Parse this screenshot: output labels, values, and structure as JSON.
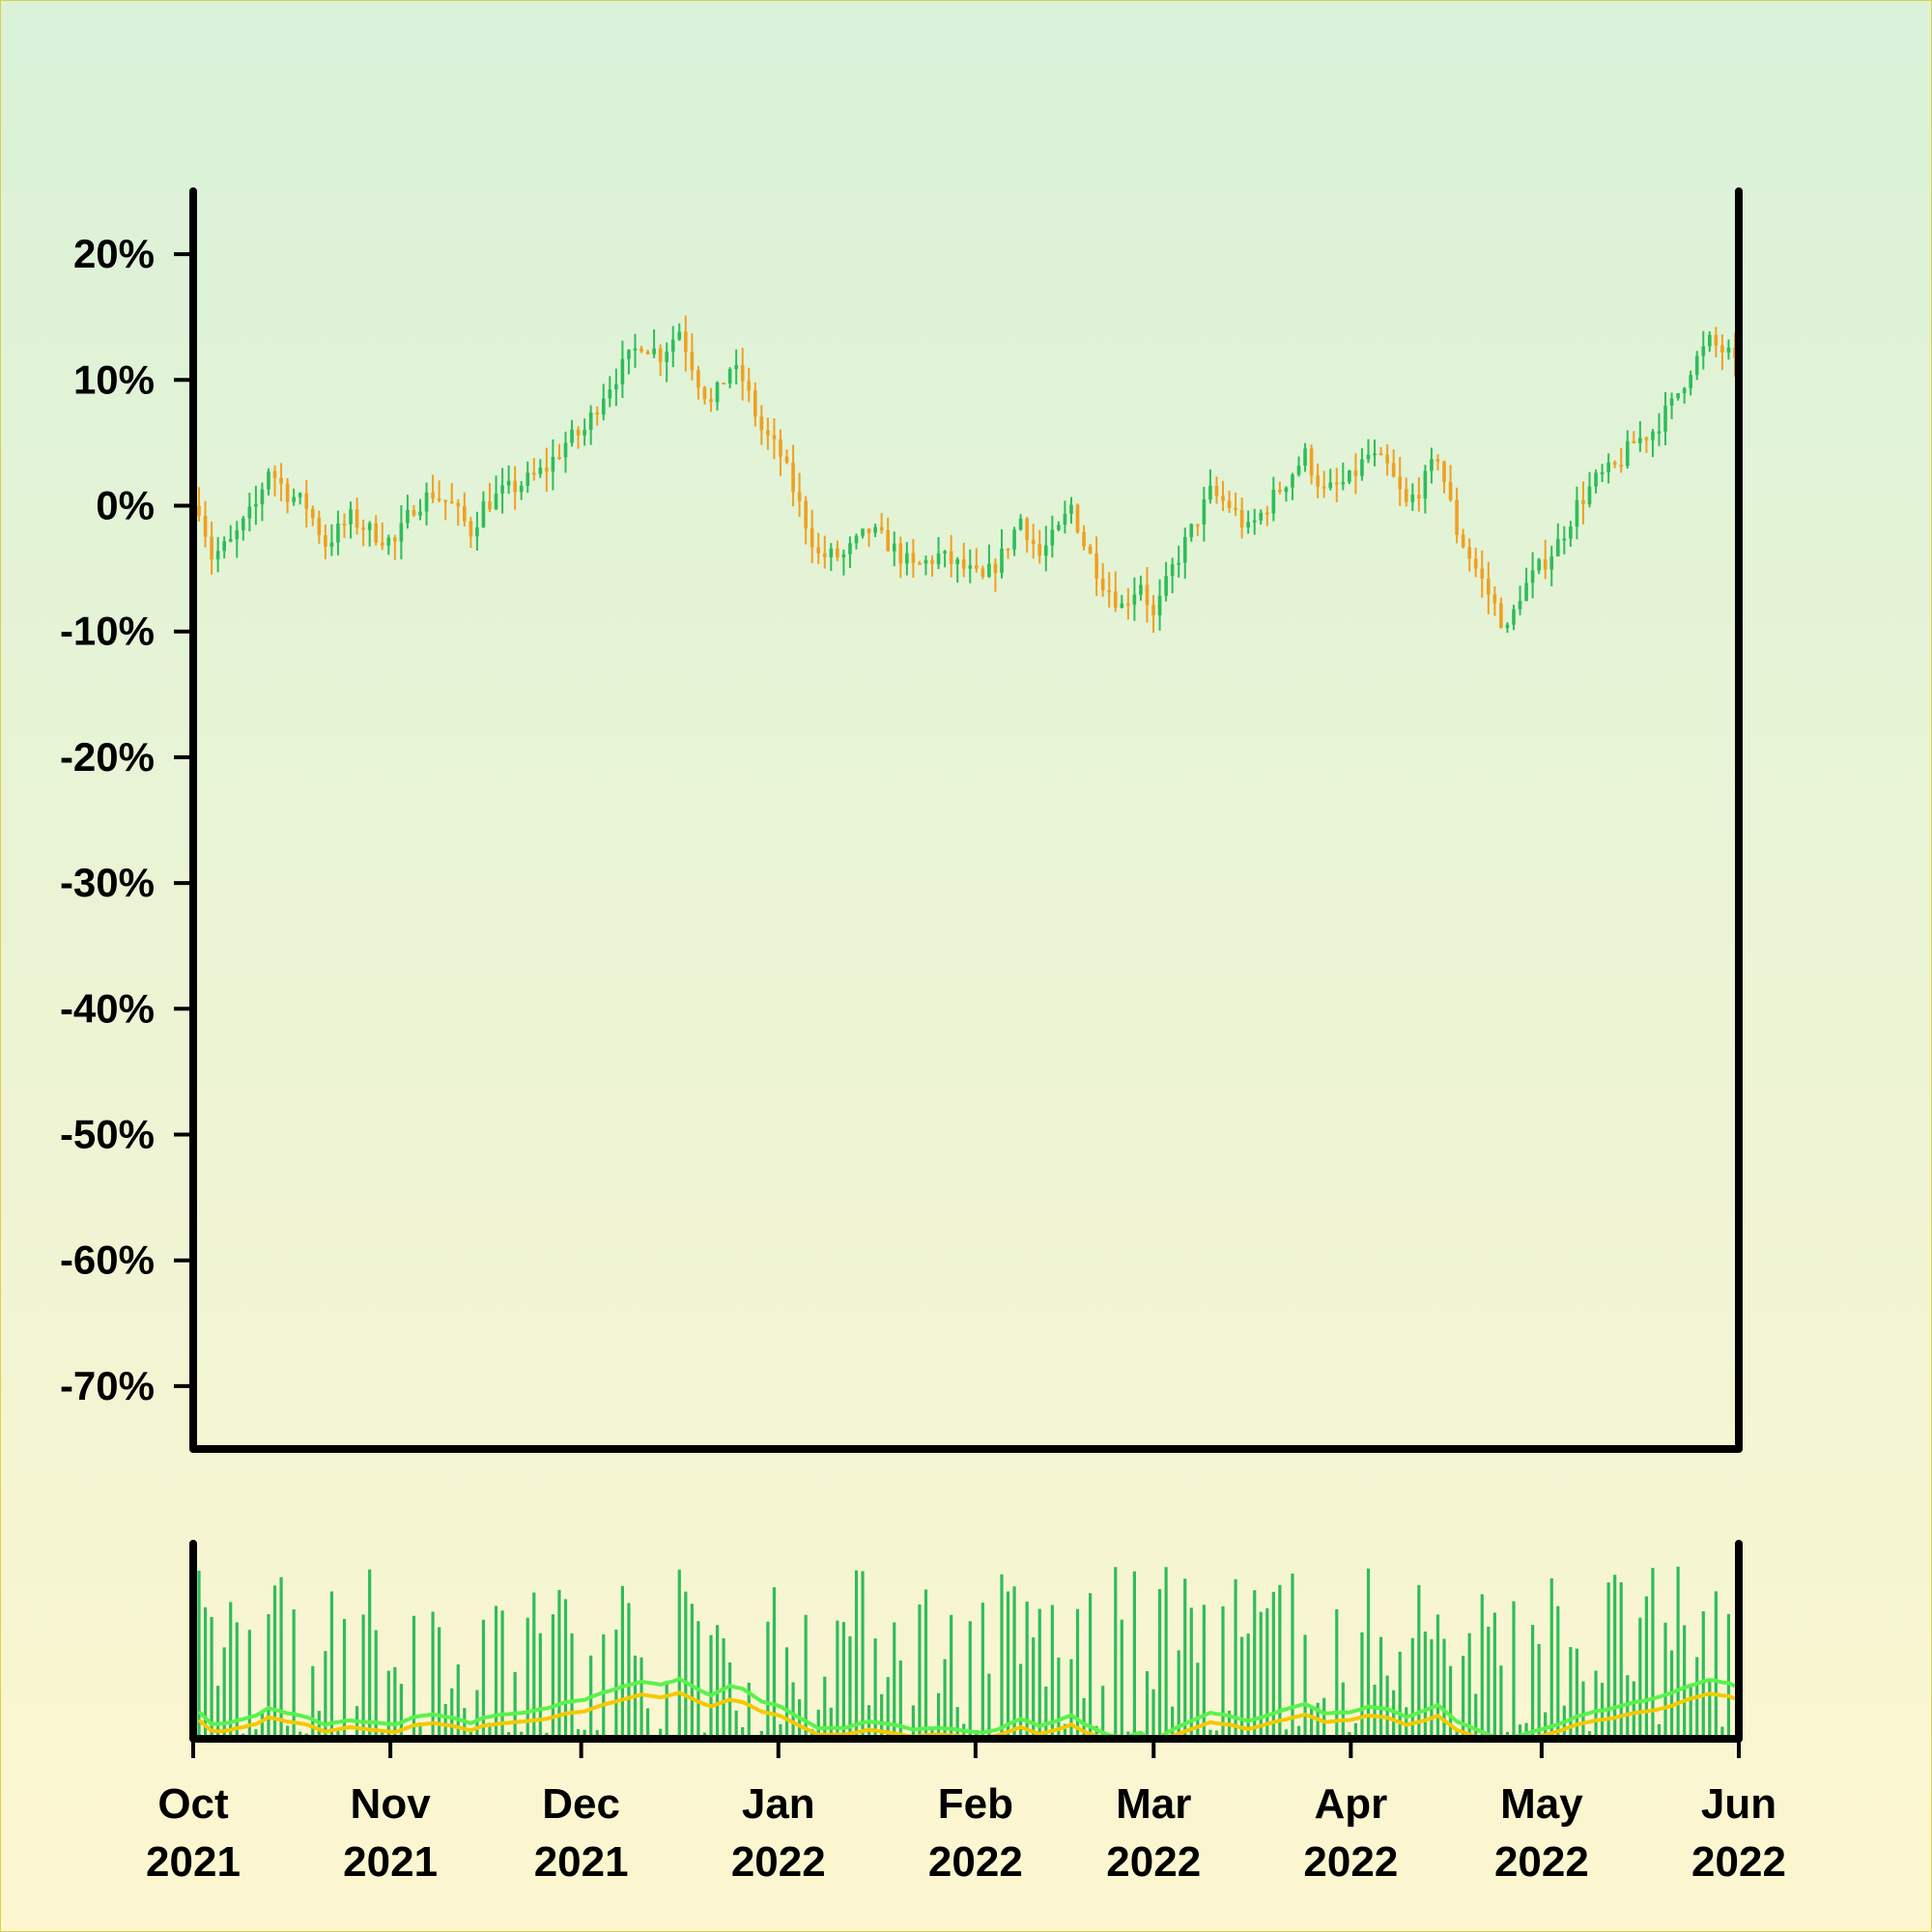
{
  "chart_data": {
    "type": "candlestick",
    "y_axis": {
      "tick_labels": [
        "20%",
        "10%",
        "0%",
        "-10%",
        "-20%",
        "-30%",
        "-40%",
        "-50%",
        "-60%",
        "-70%"
      ],
      "tick_values": [
        20,
        10,
        0,
        -10,
        -20,
        -30,
        -40,
        -50,
        -60,
        -70
      ],
      "ylim": [
        -75,
        25
      ]
    },
    "x_axis": {
      "tick_labels": [
        [
          "Oct",
          "2021"
        ],
        [
          "Nov",
          "2021"
        ],
        [
          "Dec",
          "2021"
        ],
        [
          "Jan",
          "2022"
        ],
        [
          "Feb",
          "2022"
        ],
        [
          "Mar",
          "2022"
        ],
        [
          "Apr",
          "2022"
        ],
        [
          "May",
          "2022"
        ],
        [
          "Jun",
          "2022"
        ]
      ],
      "tick_dates": [
        "2021-10-01",
        "2021-11-01",
        "2021-12-01",
        "2022-01-01",
        "2022-02-01",
        "2022-03-01",
        "2022-04-01",
        "2022-05-01",
        "2022-06-01"
      ],
      "xlim": [
        "2021-10-01",
        "2022-06-01"
      ]
    },
    "price_path": [
      [
        "2021-10-01",
        0
      ],
      [
        "2021-10-03",
        -4
      ],
      [
        "2021-10-06",
        -3
      ],
      [
        "2021-10-10",
        0
      ],
      [
        "2021-10-12",
        3
      ],
      [
        "2021-10-15",
        1
      ],
      [
        "2021-10-18",
        0
      ],
      [
        "2021-10-21",
        -3
      ],
      [
        "2021-10-25",
        -1
      ],
      [
        "2021-10-28",
        -2
      ],
      [
        "2021-11-01",
        -3
      ],
      [
        "2021-11-04",
        0
      ],
      [
        "2021-11-07",
        1
      ],
      [
        "2021-11-10",
        0
      ],
      [
        "2021-11-13",
        -2
      ],
      [
        "2021-11-15",
        0
      ],
      [
        "2021-11-18",
        1
      ],
      [
        "2021-11-22",
        2
      ],
      [
        "2021-11-25",
        3
      ],
      [
        "2021-11-28",
        5
      ],
      [
        "2021-12-01",
        6
      ],
      [
        "2021-12-04",
        9
      ],
      [
        "2021-12-07",
        11
      ],
      [
        "2021-12-10",
        13
      ],
      [
        "2021-12-13",
        12
      ],
      [
        "2021-12-16",
        14
      ],
      [
        "2021-12-19",
        10
      ],
      [
        "2021-12-21",
        8
      ],
      [
        "2021-12-24",
        11
      ],
      [
        "2021-12-26",
        10
      ],
      [
        "2021-12-29",
        6
      ],
      [
        "2022-01-01",
        4
      ],
      [
        "2022-01-04",
        0
      ],
      [
        "2022-01-07",
        -4
      ],
      [
        "2022-01-11",
        -4
      ],
      [
        "2022-01-15",
        -2
      ],
      [
        "2022-01-18",
        -3
      ],
      [
        "2022-01-22",
        -5
      ],
      [
        "2022-01-26",
        -4
      ],
      [
        "2022-01-30",
        -5
      ],
      [
        "2022-02-02",
        -6
      ],
      [
        "2022-02-05",
        -4
      ],
      [
        "2022-02-08",
        -1
      ],
      [
        "2022-02-11",
        -4
      ],
      [
        "2022-02-14",
        -2
      ],
      [
        "2022-02-16",
        0
      ],
      [
        "2022-02-18",
        -3
      ],
      [
        "2022-02-21",
        -6
      ],
      [
        "2022-02-24",
        -8
      ],
      [
        "2022-02-27",
        -6
      ],
      [
        "2022-03-01",
        -9
      ],
      [
        "2022-03-04",
        -5
      ],
      [
        "2022-03-07",
        -2
      ],
      [
        "2022-03-10",
        1
      ],
      [
        "2022-03-13",
        0
      ],
      [
        "2022-03-16",
        -2
      ],
      [
        "2022-03-19",
        0
      ],
      [
        "2022-03-22",
        2
      ],
      [
        "2022-03-25",
        4
      ],
      [
        "2022-03-28",
        1
      ],
      [
        "2022-04-01",
        2
      ],
      [
        "2022-04-04",
        4
      ],
      [
        "2022-04-07",
        3
      ],
      [
        "2022-04-10",
        0
      ],
      [
        "2022-04-13",
        2
      ],
      [
        "2022-04-15",
        4
      ],
      [
        "2022-04-18",
        -2
      ],
      [
        "2022-04-22",
        -6
      ],
      [
        "2022-04-26",
        -10
      ],
      [
        "2022-04-28",
        -7
      ],
      [
        "2022-05-01",
        -5
      ],
      [
        "2022-05-04",
        -3
      ],
      [
        "2022-05-07",
        0
      ],
      [
        "2022-05-10",
        2
      ],
      [
        "2022-05-13",
        3
      ],
      [
        "2022-05-16",
        5
      ],
      [
        "2022-05-19",
        6
      ],
      [
        "2022-05-22",
        8
      ],
      [
        "2022-05-25",
        11
      ],
      [
        "2022-05-28",
        13
      ],
      [
        "2022-05-31",
        12
      ],
      [
        "2022-06-01",
        11
      ]
    ],
    "colors": {
      "up": "#2ebd59",
      "down": "#f0a020",
      "volume": "#2ebd59",
      "ma_fast": "#59f24d",
      "ma_slow": "#f5c800",
      "axes": "#000000",
      "background_top": "#d9f2d9",
      "background_bottom": "#fdf6d0"
    }
  }
}
